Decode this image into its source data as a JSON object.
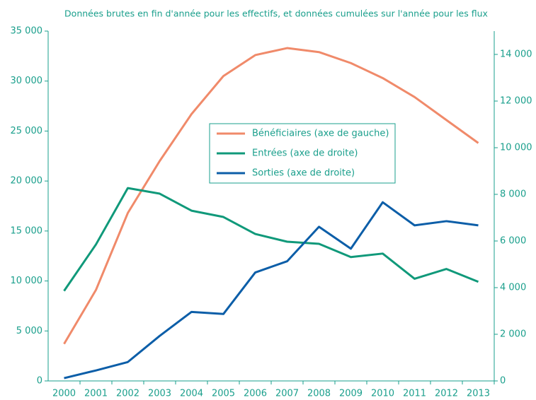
{
  "chart_data": {
    "type": "line",
    "title": "Données brutes en fin d'année pour les effectifs, et données cumulées sur l'année pour les flux",
    "categories": [
      "2000",
      "2001",
      "2002",
      "2003",
      "2004",
      "2005",
      "2006",
      "2007",
      "2008",
      "2009",
      "2010",
      "2011",
      "2012",
      "2013"
    ],
    "series": [
      {
        "name": "Bénéficiaires (axe de gauche)",
        "color": "#f08a6a",
        "axis": "y",
        "values": [
          3700,
          9100,
          16800,
          22000,
          26700,
          30500,
          32600,
          33300,
          32900,
          31800,
          30300,
          28400,
          26100,
          23800
        ]
      },
      {
        "name": "Entrées (axe de droite)",
        "color": "#10997a",
        "axis": "y2",
        "values": [
          3860,
          5850,
          8270,
          8030,
          7300,
          7030,
          6300,
          5970,
          5880,
          5310,
          5460,
          4380,
          4800,
          4250
        ]
      },
      {
        "name": "Sorties (axe de droite)",
        "color": "#0c5ea8",
        "axis": "y2",
        "values": [
          120,
          450,
          810,
          1930,
          2960,
          2870,
          4650,
          5130,
          6610,
          5670,
          7660,
          6670,
          6850,
          6670
        ]
      }
    ],
    "ylim": [
      0,
      35000
    ],
    "yticks": [
      0,
      {
        "value": 5000,
        "label": "5 000"
      },
      {
        "value": 10000,
        "label": "10 000"
      },
      {
        "value": 15000,
        "label": "15 000"
      },
      {
        "value": 20000,
        "label": "20 000"
      },
      {
        "value": 25000,
        "label": "25 000"
      },
      {
        "value": 30000,
        "label": "30 000"
      },
      {
        "value": 35000,
        "label": "35 000"
      }
    ],
    "y2lim": [
      0,
      15000
    ],
    "y2ticks": [
      0,
      {
        "value": 2000,
        "label": "2 000"
      },
      {
        "value": 4000,
        "label": "4 000"
      },
      {
        "value": 6000,
        "label": "6 000"
      },
      {
        "value": 8000,
        "label": "8 000"
      },
      {
        "value": 10000,
        "label": "10 000"
      },
      {
        "value": 12000,
        "label": "12 000"
      },
      {
        "value": 14000,
        "label": "14 000"
      }
    ],
    "grid": false
  }
}
